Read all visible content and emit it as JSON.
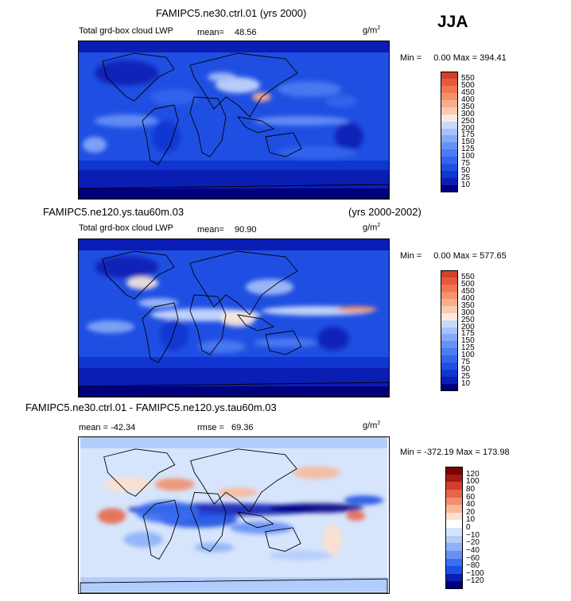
{
  "season": "JJA",
  "colors": {
    "abs": [
      "#00007f",
      "#0a1eb4",
      "#1035d0",
      "#1f4fe2",
      "#3465ec",
      "#4c7bf2",
      "#6891f6",
      "#86a8f8",
      "#a6c0fa",
      "#c8d9fb",
      "#fde9dd",
      "#fbcbb0",
      "#f8ae8c",
      "#f5916c",
      "#f07652",
      "#e55a3d",
      "#d0402a",
      "#ad2418",
      "#87000a"
    ],
    "diff": [
      "#00007f",
      "#0a1eb4",
      "#1f4fe2",
      "#3c6ef0",
      "#6690f6",
      "#8db0f9",
      "#b2ccfb",
      "#d6e5fc",
      "#ffffff",
      "#fde0cc",
      "#f8b898",
      "#f28f6c",
      "#e8664a",
      "#d23f2c",
      "#a51b14",
      "#7f0000"
    ]
  },
  "chart_data": [
    {
      "type": "heatmap",
      "case": "FAMIPC5.ne30.ctrl.01",
      "years": "(yrs 2000)",
      "variable": "Total grd-box cloud LWP",
      "mean_label": "mean=",
      "mean": "48.56",
      "units": "g/m",
      "units_exp": "2",
      "min_label": "Min =",
      "min": "0.00",
      "max_label": "Max =",
      "max": "394.41",
      "levels": [
        "10",
        "25",
        "50",
        "75",
        "100",
        "125",
        "150",
        "175",
        "200",
        "250",
        "300",
        "350",
        "400",
        "450",
        "500",
        "550"
      ]
    },
    {
      "type": "heatmap",
      "case": "FAMIPC5.ne120.ys.tau60m.03",
      "years": "(yrs 2000-2002)",
      "variable": "Total grd-box cloud LWP",
      "mean_label": "mean=",
      "mean": "90.90",
      "units": "g/m",
      "units_exp": "2",
      "min_label": "Min =",
      "min": "0.00",
      "max_label": "Max =",
      "max": "577.65",
      "levels": [
        "10",
        "25",
        "50",
        "75",
        "100",
        "125",
        "150",
        "175",
        "200",
        "250",
        "300",
        "350",
        "400",
        "450",
        "500",
        "550"
      ]
    },
    {
      "type": "heatmap",
      "case": "FAMIPC5.ne30.ctrl.01 - FAMIPC5.ne120.ys.tau60m.03",
      "mean_label": "mean =",
      "mean": "-42.34",
      "rmse_label": "rmse =",
      "rmse": "69.36",
      "units": "g/m",
      "units_exp": "2",
      "min_label": "Min =",
      "min": "-372.19",
      "max_label": "Max =",
      "max": "173.98",
      "levels": [
        "-120",
        "-100",
        "-80",
        "-60",
        "-40",
        "-20",
        "-10",
        "0",
        "10",
        "20",
        "40",
        "60",
        "80",
        "100",
        "120"
      ]
    }
  ]
}
